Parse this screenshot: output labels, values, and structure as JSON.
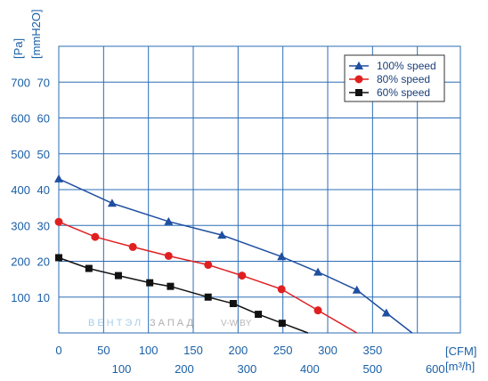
{
  "chart_data": {
    "type": "line",
    "y_axis_labels": {
      "pa": "[Pa]",
      "mmh2o": "[mmH2O]"
    },
    "x_axis_labels": {
      "cfm": "[CFM]",
      "m3h": "[m³/h]"
    },
    "y_ticks_pa": [
      "100",
      "200",
      "300",
      "400",
      "500",
      "600",
      "700"
    ],
    "y_ticks_mmh2o": [
      "10",
      "20",
      "30",
      "40",
      "50",
      "60",
      "70"
    ],
    "x_ticks_cfm": [
      "0",
      "50",
      "100",
      "150",
      "200",
      "250",
      "300",
      "350"
    ],
    "x_ticks_m3h": [
      "100",
      "200",
      "300",
      "400",
      "500",
      "600"
    ],
    "xlim": [
      0,
      640
    ],
    "ylim": [
      0,
      800
    ],
    "grid": true,
    "legend_position": "top-right",
    "series": [
      {
        "name": "100%  speed",
        "color": "#1f4fa0",
        "marker": "triangle",
        "x": [
          0,
          85,
          175,
          260,
          355,
          413,
          475,
          522
        ],
        "y": [
          430,
          362,
          311,
          273,
          213,
          170,
          120,
          56
        ]
      },
      {
        "name": "80%  speed",
        "color": "#e02020",
        "marker": "circle",
        "x": [
          0,
          58,
          118,
          175,
          238,
          292,
          355,
          413
        ],
        "y": [
          310,
          268,
          240,
          215,
          190,
          160,
          122,
          63
        ]
      },
      {
        "name": "60%  speed",
        "color": "#111111",
        "marker": "square",
        "x": [
          0,
          48,
          95,
          145,
          178,
          238,
          278,
          318,
          356
        ],
        "y": [
          210,
          180,
          160,
          140,
          130,
          100,
          82,
          52,
          27
        ]
      }
    ]
  },
  "watermark": {
    "part1": "ВЕНТЭЛ",
    "part2": "ЗАПАД",
    "part3": "V-W.BY"
  }
}
